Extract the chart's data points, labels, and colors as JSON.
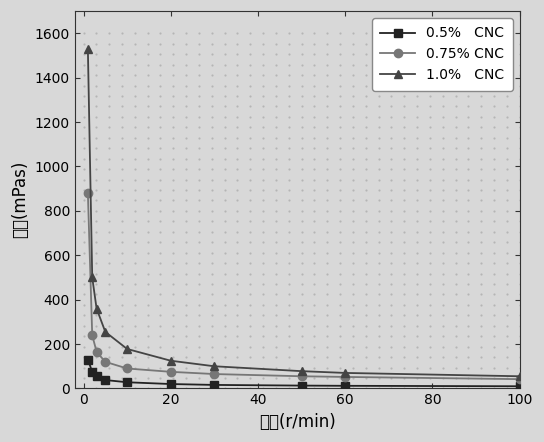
{
  "title": "",
  "xlabel": "转速(r/min)",
  "ylabel": "粘度(mPas)",
  "series": [
    {
      "label": "0.5%   CNC",
      "marker": "s",
      "color": "#222222",
      "x": [
        1,
        2,
        3,
        5,
        10,
        20,
        30,
        50,
        60,
        100
      ],
      "y": [
        130,
        75,
        55,
        38,
        28,
        20,
        16,
        13,
        12,
        10
      ]
    },
    {
      "label": "0.75% CNC",
      "marker": "o",
      "color": "#777777",
      "x": [
        1,
        2,
        3,
        5,
        10,
        20,
        30,
        50,
        60,
        100
      ],
      "y": [
        880,
        240,
        165,
        120,
        90,
        75,
        65,
        55,
        52,
        42
      ]
    },
    {
      "label": "1.0%   CNC",
      "marker": "^",
      "color": "#444444",
      "x": [
        1,
        2,
        3,
        5,
        10,
        20,
        30,
        50,
        60,
        100
      ],
      "y": [
        1530,
        500,
        360,
        255,
        178,
        125,
        100,
        78,
        70,
        55
      ]
    }
  ],
  "xlim": [
    -2,
    100
  ],
  "ylim": [
    0,
    1700
  ],
  "yticks": [
    0,
    200,
    400,
    600,
    800,
    1000,
    1200,
    1400,
    1600
  ],
  "xticks": [
    0,
    20,
    40,
    60,
    80,
    100
  ],
  "background_color": "#d8d8d8",
  "dot_color": "#bbbbbb",
  "legend_loc": "upper right"
}
